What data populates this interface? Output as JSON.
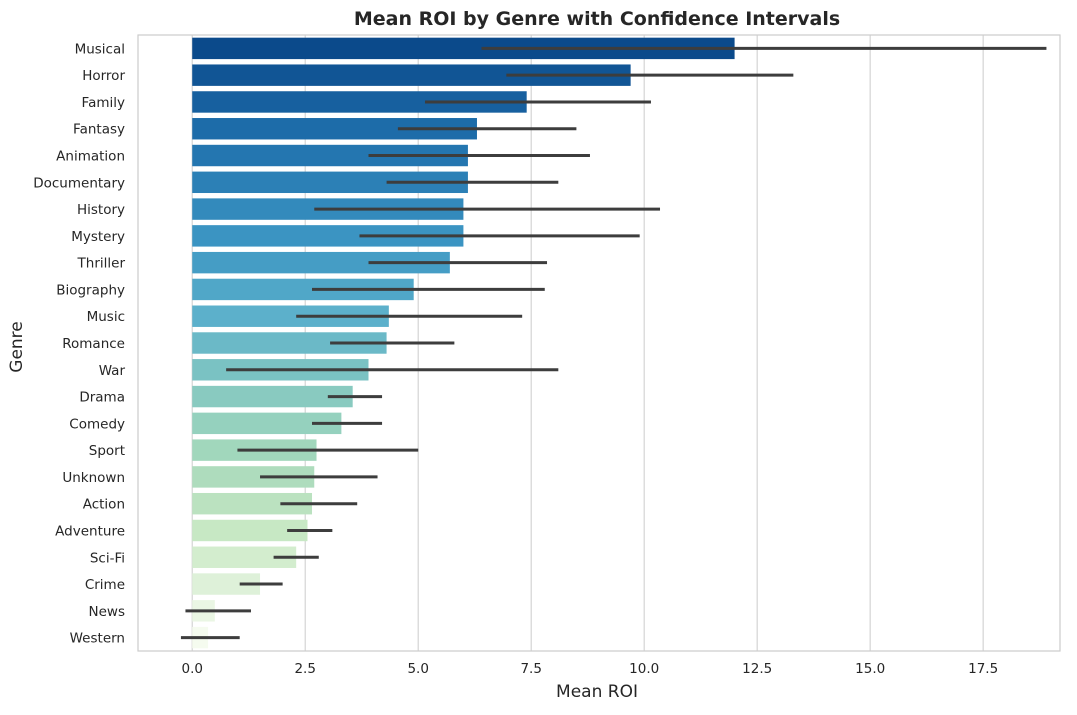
{
  "chart_data": {
    "type": "bar",
    "orientation": "horizontal",
    "title": "Mean ROI by Genre with Confidence Intervals",
    "xlabel": "Mean ROI",
    "ylabel": "Genre",
    "xlim": [
      -1.2,
      19.2
    ],
    "xticks": [
      0.0,
      2.5,
      5.0,
      7.5,
      10.0,
      12.5,
      15.0,
      17.5
    ],
    "xtick_labels": [
      "0.0",
      "2.5",
      "5.0",
      "7.5",
      "10.0",
      "12.5",
      "15.0",
      "17.5"
    ],
    "grid": "vertical",
    "colormap": "GnBu (reversed)",
    "colors": {
      "top": "#0b4a8b",
      "bottom": "#f5fbef",
      "error_bar": "#3d3d3d",
      "grid": "#d4d4d4",
      "spine": "#cccccc"
    },
    "categories": [
      "Musical",
      "Horror",
      "Family",
      "Fantasy",
      "Animation",
      "Documentary",
      "History",
      "Mystery",
      "Thriller",
      "Biography",
      "Music",
      "Romance",
      "War",
      "Drama",
      "Comedy",
      "Sport",
      "Unknown",
      "Action",
      "Adventure",
      "Sci-Fi",
      "Crime",
      "News",
      "Western"
    ],
    "values": [
      12.0,
      9.7,
      7.4,
      6.3,
      6.1,
      6.1,
      6.0,
      6.0,
      5.7,
      4.9,
      4.35,
      4.3,
      3.9,
      3.55,
      3.3,
      2.75,
      2.7,
      2.65,
      2.55,
      2.3,
      1.5,
      0.5,
      0.35
    ],
    "ci_low": [
      6.4,
      6.95,
      5.15,
      4.55,
      3.9,
      4.3,
      2.7,
      3.7,
      3.9,
      2.65,
      2.3,
      3.05,
      0.75,
      3.0,
      2.65,
      1.0,
      1.5,
      1.95,
      2.1,
      1.8,
      1.05,
      -0.15,
      -0.25
    ],
    "ci_high": [
      18.9,
      13.3,
      10.15,
      8.5,
      8.8,
      8.1,
      10.35,
      9.9,
      7.85,
      7.8,
      7.3,
      5.8,
      8.1,
      4.2,
      4.2,
      5.0,
      4.1,
      3.65,
      3.1,
      2.8,
      2.0,
      1.3,
      1.05
    ]
  }
}
